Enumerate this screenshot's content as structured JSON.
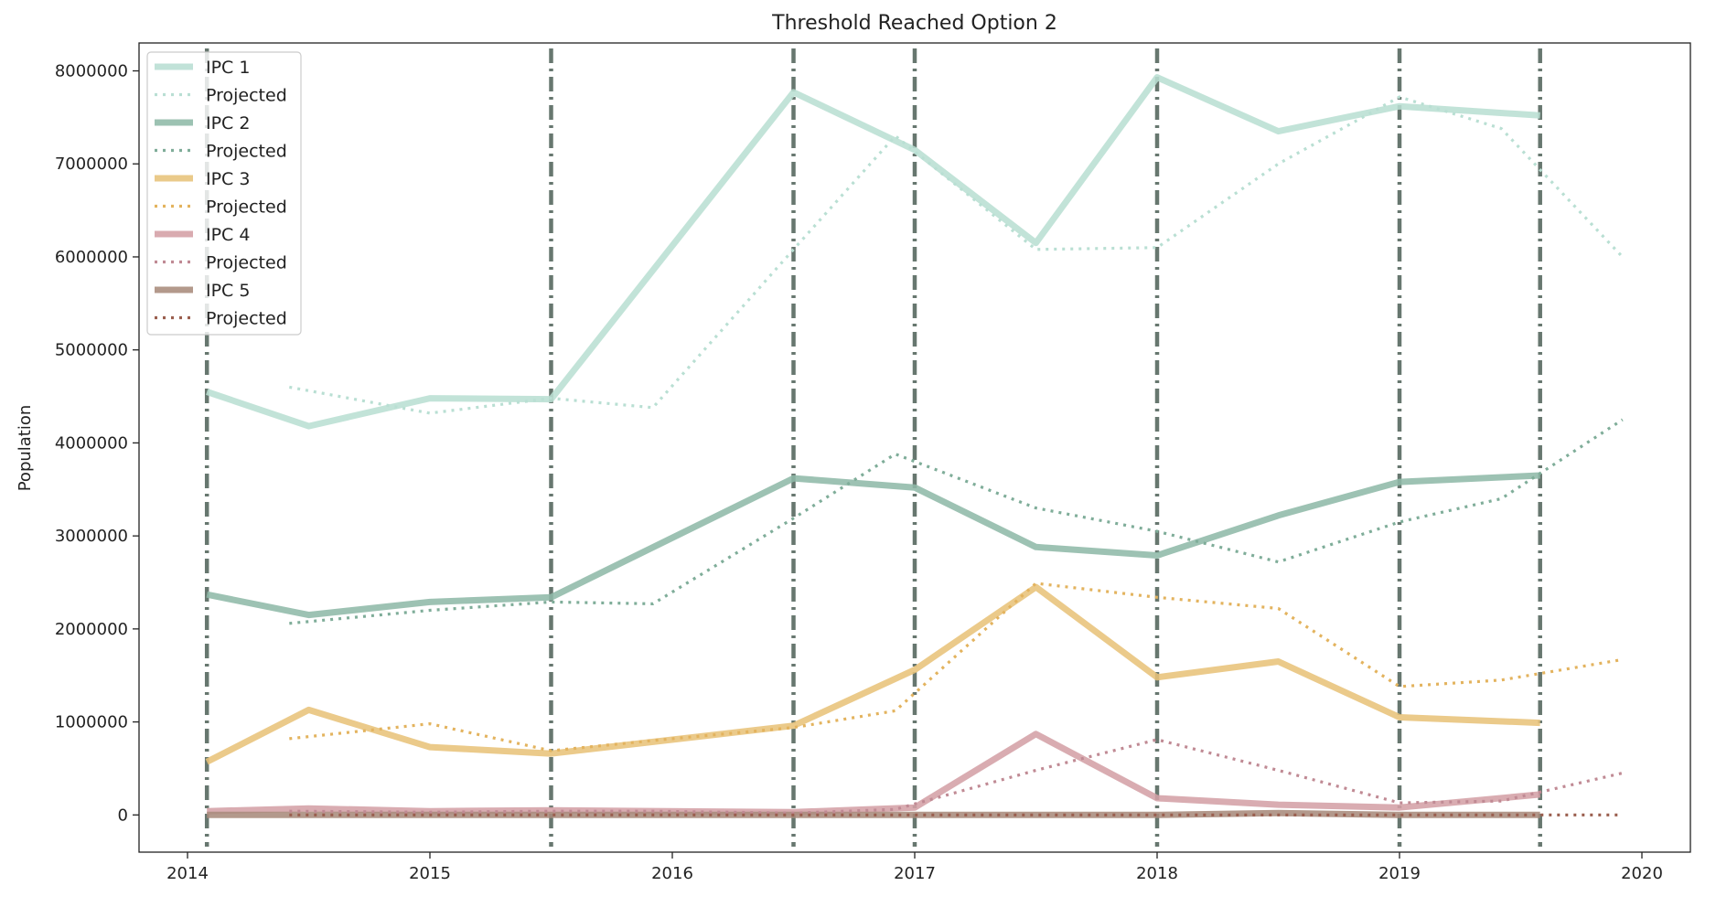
{
  "chart_data": {
    "type": "line",
    "title": "Threshold Reached Option 2",
    "xlabel": "",
    "ylabel": "Population",
    "xlim": [
      2013.8,
      2020.2
    ],
    "ylim": [
      -400000,
      8300000
    ],
    "x_ticks": [
      2014,
      2015,
      2016,
      2017,
      2018,
      2019,
      2020
    ],
    "x_tick_labels": [
      "2014",
      "2015",
      "2016",
      "2017",
      "2018",
      "2019",
      "2020"
    ],
    "y_ticks": [
      0,
      1000000,
      2000000,
      3000000,
      4000000,
      5000000,
      6000000,
      7000000,
      8000000
    ],
    "y_tick_labels": [
      "0",
      "1000000",
      "2000000",
      "3000000",
      "4000000",
      "5000000",
      "6000000",
      "7000000",
      "8000000"
    ],
    "grid": false,
    "legend_position": "top-left",
    "threshold_lines": {
      "style": "dash-dot",
      "color": "#5f7068",
      "x": [
        2014.08,
        2015.5,
        2016.5,
        2017.0,
        2018.0,
        2019.0,
        2019.58
      ]
    },
    "series": [
      {
        "name": "IPC 1",
        "style": "solid",
        "color": "#b9dfd3",
        "x": [
          2014.08,
          2014.5,
          2015.0,
          2015.5,
          2016.5,
          2017.0,
          2017.5,
          2018.0,
          2018.5,
          2019.0,
          2019.58
        ],
        "values": [
          4550000,
          4180000,
          4480000,
          4470000,
          7770000,
          7150000,
          6150000,
          7930000,
          7350000,
          7620000,
          7520000
        ]
      },
      {
        "name": "Projected",
        "style": "dotted",
        "color": "#b9dfd3",
        "x": [
          2014.42,
          2015.0,
          2015.5,
          2015.92,
          2016.5,
          2016.92,
          2017.5,
          2018.0,
          2018.5,
          2019.0,
          2019.42,
          2019.92
        ],
        "values": [
          4600000,
          4320000,
          4480000,
          4380000,
          6080000,
          7300000,
          6080000,
          6100000,
          7000000,
          7720000,
          7380000,
          6000000
        ]
      },
      {
        "name": "IPC 2",
        "style": "solid",
        "color": "#8fbaa8",
        "x": [
          2014.08,
          2014.5,
          2015.0,
          2015.5,
          2016.5,
          2017.0,
          2017.5,
          2018.0,
          2018.5,
          2019.0,
          2019.58
        ],
        "values": [
          2370000,
          2150000,
          2290000,
          2340000,
          3620000,
          3520000,
          2880000,
          2790000,
          3220000,
          3580000,
          3650000
        ]
      },
      {
        "name": "Projected",
        "style": "dotted",
        "color": "#7fad99",
        "x": [
          2014.42,
          2015.0,
          2015.5,
          2015.92,
          2016.5,
          2016.92,
          2017.5,
          2018.0,
          2018.5,
          2019.0,
          2019.42,
          2019.92
        ],
        "values": [
          2060000,
          2200000,
          2290000,
          2270000,
          3190000,
          3880000,
          3300000,
          3050000,
          2720000,
          3150000,
          3400000,
          4250000
        ]
      },
      {
        "name": "IPC 3",
        "style": "solid",
        "color": "#e8c37a",
        "x": [
          2014.08,
          2014.5,
          2015.0,
          2015.5,
          2016.5,
          2017.0,
          2017.5,
          2018.0,
          2018.5,
          2019.0,
          2019.58
        ],
        "values": [
          570000,
          1130000,
          730000,
          660000,
          960000,
          1560000,
          2450000,
          1480000,
          1650000,
          1050000,
          990000
        ]
      },
      {
        "name": "Projected",
        "style": "dotted",
        "color": "#e3b35e",
        "x": [
          2014.42,
          2015.0,
          2015.5,
          2015.92,
          2016.5,
          2016.92,
          2017.5,
          2018.0,
          2018.5,
          2019.0,
          2019.42,
          2019.92
        ],
        "values": [
          820000,
          980000,
          690000,
          800000,
          940000,
          1120000,
          2490000,
          2340000,
          2220000,
          1380000,
          1450000,
          1670000
        ]
      },
      {
        "name": "IPC 4",
        "style": "solid",
        "color": "#d4a0a6",
        "x": [
          2014.08,
          2014.5,
          2015.0,
          2015.5,
          2016.5,
          2017.0,
          2017.5,
          2018.0,
          2018.5,
          2019.0,
          2019.58
        ],
        "values": [
          40000,
          70000,
          40000,
          50000,
          30000,
          80000,
          870000,
          180000,
          110000,
          80000,
          220000
        ]
      },
      {
        "name": "Projected",
        "style": "dotted",
        "color": "#c08a94",
        "x": [
          2014.42,
          2015.0,
          2015.5,
          2015.92,
          2016.5,
          2016.92,
          2017.5,
          2018.0,
          2018.5,
          2019.0,
          2019.42,
          2019.92
        ],
        "values": [
          40000,
          30000,
          40000,
          40000,
          20000,
          60000,
          480000,
          810000,
          480000,
          130000,
          150000,
          450000
        ]
      },
      {
        "name": "IPC 5",
        "style": "solid",
        "color": "#a98b7c",
        "x": [
          2014.08,
          2014.5,
          2015.0,
          2015.5,
          2016.5,
          2017.0,
          2017.5,
          2018.0,
          2018.5,
          2019.0,
          2019.58
        ],
        "values": [
          0,
          0,
          0,
          0,
          0,
          0,
          0,
          0,
          20000,
          0,
          0
        ]
      },
      {
        "name": "Projected",
        "style": "dotted",
        "color": "#9a5e4e",
        "x": [
          2014.42,
          2015.0,
          2015.5,
          2015.92,
          2016.5,
          2016.92,
          2017.5,
          2018.0,
          2018.5,
          2019.0,
          2019.42,
          2019.92
        ],
        "values": [
          0,
          0,
          0,
          0,
          0,
          0,
          0,
          0,
          0,
          0,
          0,
          0
        ]
      }
    ]
  }
}
